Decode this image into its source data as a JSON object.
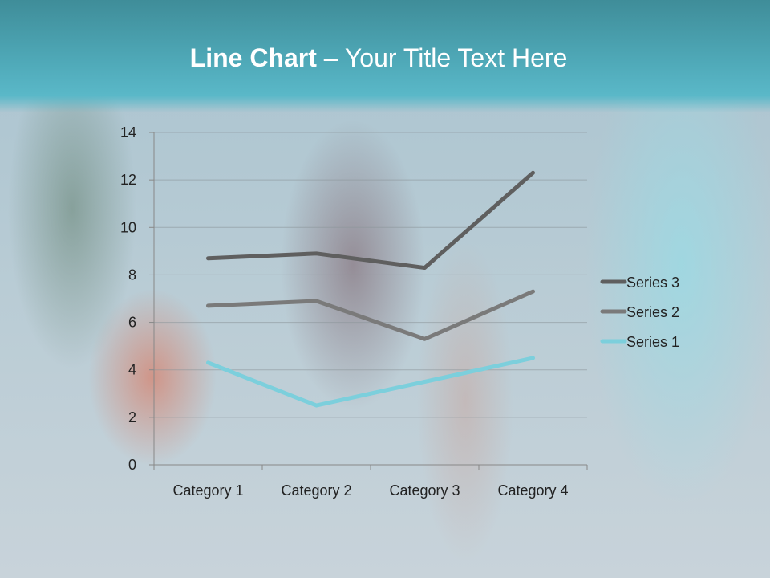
{
  "title": {
    "bold": "Line Chart",
    "rest": " – Your Title Text Here"
  },
  "chart_data": {
    "type": "line",
    "stacked": true,
    "categories": [
      "Category 1",
      "Category 2",
      "Category 3",
      "Category 4"
    ],
    "series": [
      {
        "name": "Series 1",
        "values": [
          4.3,
          2.5,
          3.5,
          4.5
        ],
        "color": "#7ccfdc"
      },
      {
        "name": "Series 2",
        "values": [
          6.7,
          6.9,
          5.3,
          7.3
        ],
        "color": "#7a7a7a"
      },
      {
        "name": "Series 3",
        "values": [
          8.7,
          8.9,
          8.3,
          12.3
        ],
        "color": "#5f5f5f"
      }
    ],
    "ylim": [
      0,
      14
    ],
    "yticks": [
      "0",
      "2",
      "4",
      "6",
      "8",
      "10",
      "12",
      "14"
    ],
    "grid": true,
    "legend": "right"
  }
}
